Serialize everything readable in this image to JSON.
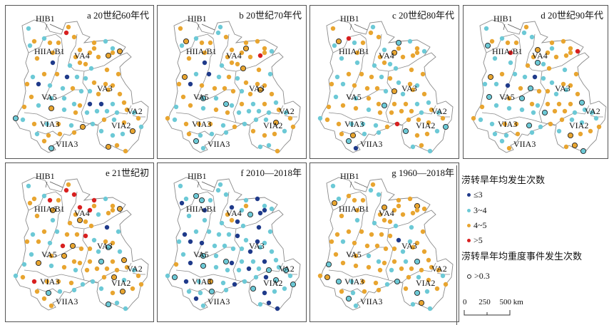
{
  "colors": {
    "le3": "#1f3a8a",
    "r3_4": "#6cc9d6",
    "r4_5": "#e8a530",
    "gt5": "#d82020",
    "outline": "#8a8a8a",
    "severe_ring": "#222222"
  },
  "regions": [
    "HIB1",
    "HIIA/B1",
    "VA4",
    "VA3",
    "VA5",
    "VA2",
    "VIA3",
    "VIA2",
    "VIIA3"
  ],
  "panels": [
    {
      "id": "a",
      "title": "a 20世纪60年代"
    },
    {
      "id": "b",
      "title": "b 20世纪70年代"
    },
    {
      "id": "c",
      "title": "c 20世纪80年代"
    },
    {
      "id": "d",
      "title": "d 20世纪90年代"
    },
    {
      "id": "e",
      "title": "e 21世纪初"
    },
    {
      "id": "f",
      "title": "f 2010—2018年"
    },
    {
      "id": "g",
      "title": "g 1960—2018年"
    }
  ],
  "legend": {
    "freq_title": "涝转旱年均发生次数",
    "items": [
      {
        "key": "le3",
        "label": "≤3"
      },
      {
        "key": "r3_4",
        "label": "3~4"
      },
      {
        "key": "r4_5",
        "label": "4~5"
      },
      {
        "key": "gt5",
        "label": ">5"
      }
    ],
    "severe_title": "涝转旱年均重度事件发生次数",
    "severe_label": ">0.3",
    "scale": {
      "t0": "0",
      "t1": "250",
      "t2": "500 km"
    }
  }
}
